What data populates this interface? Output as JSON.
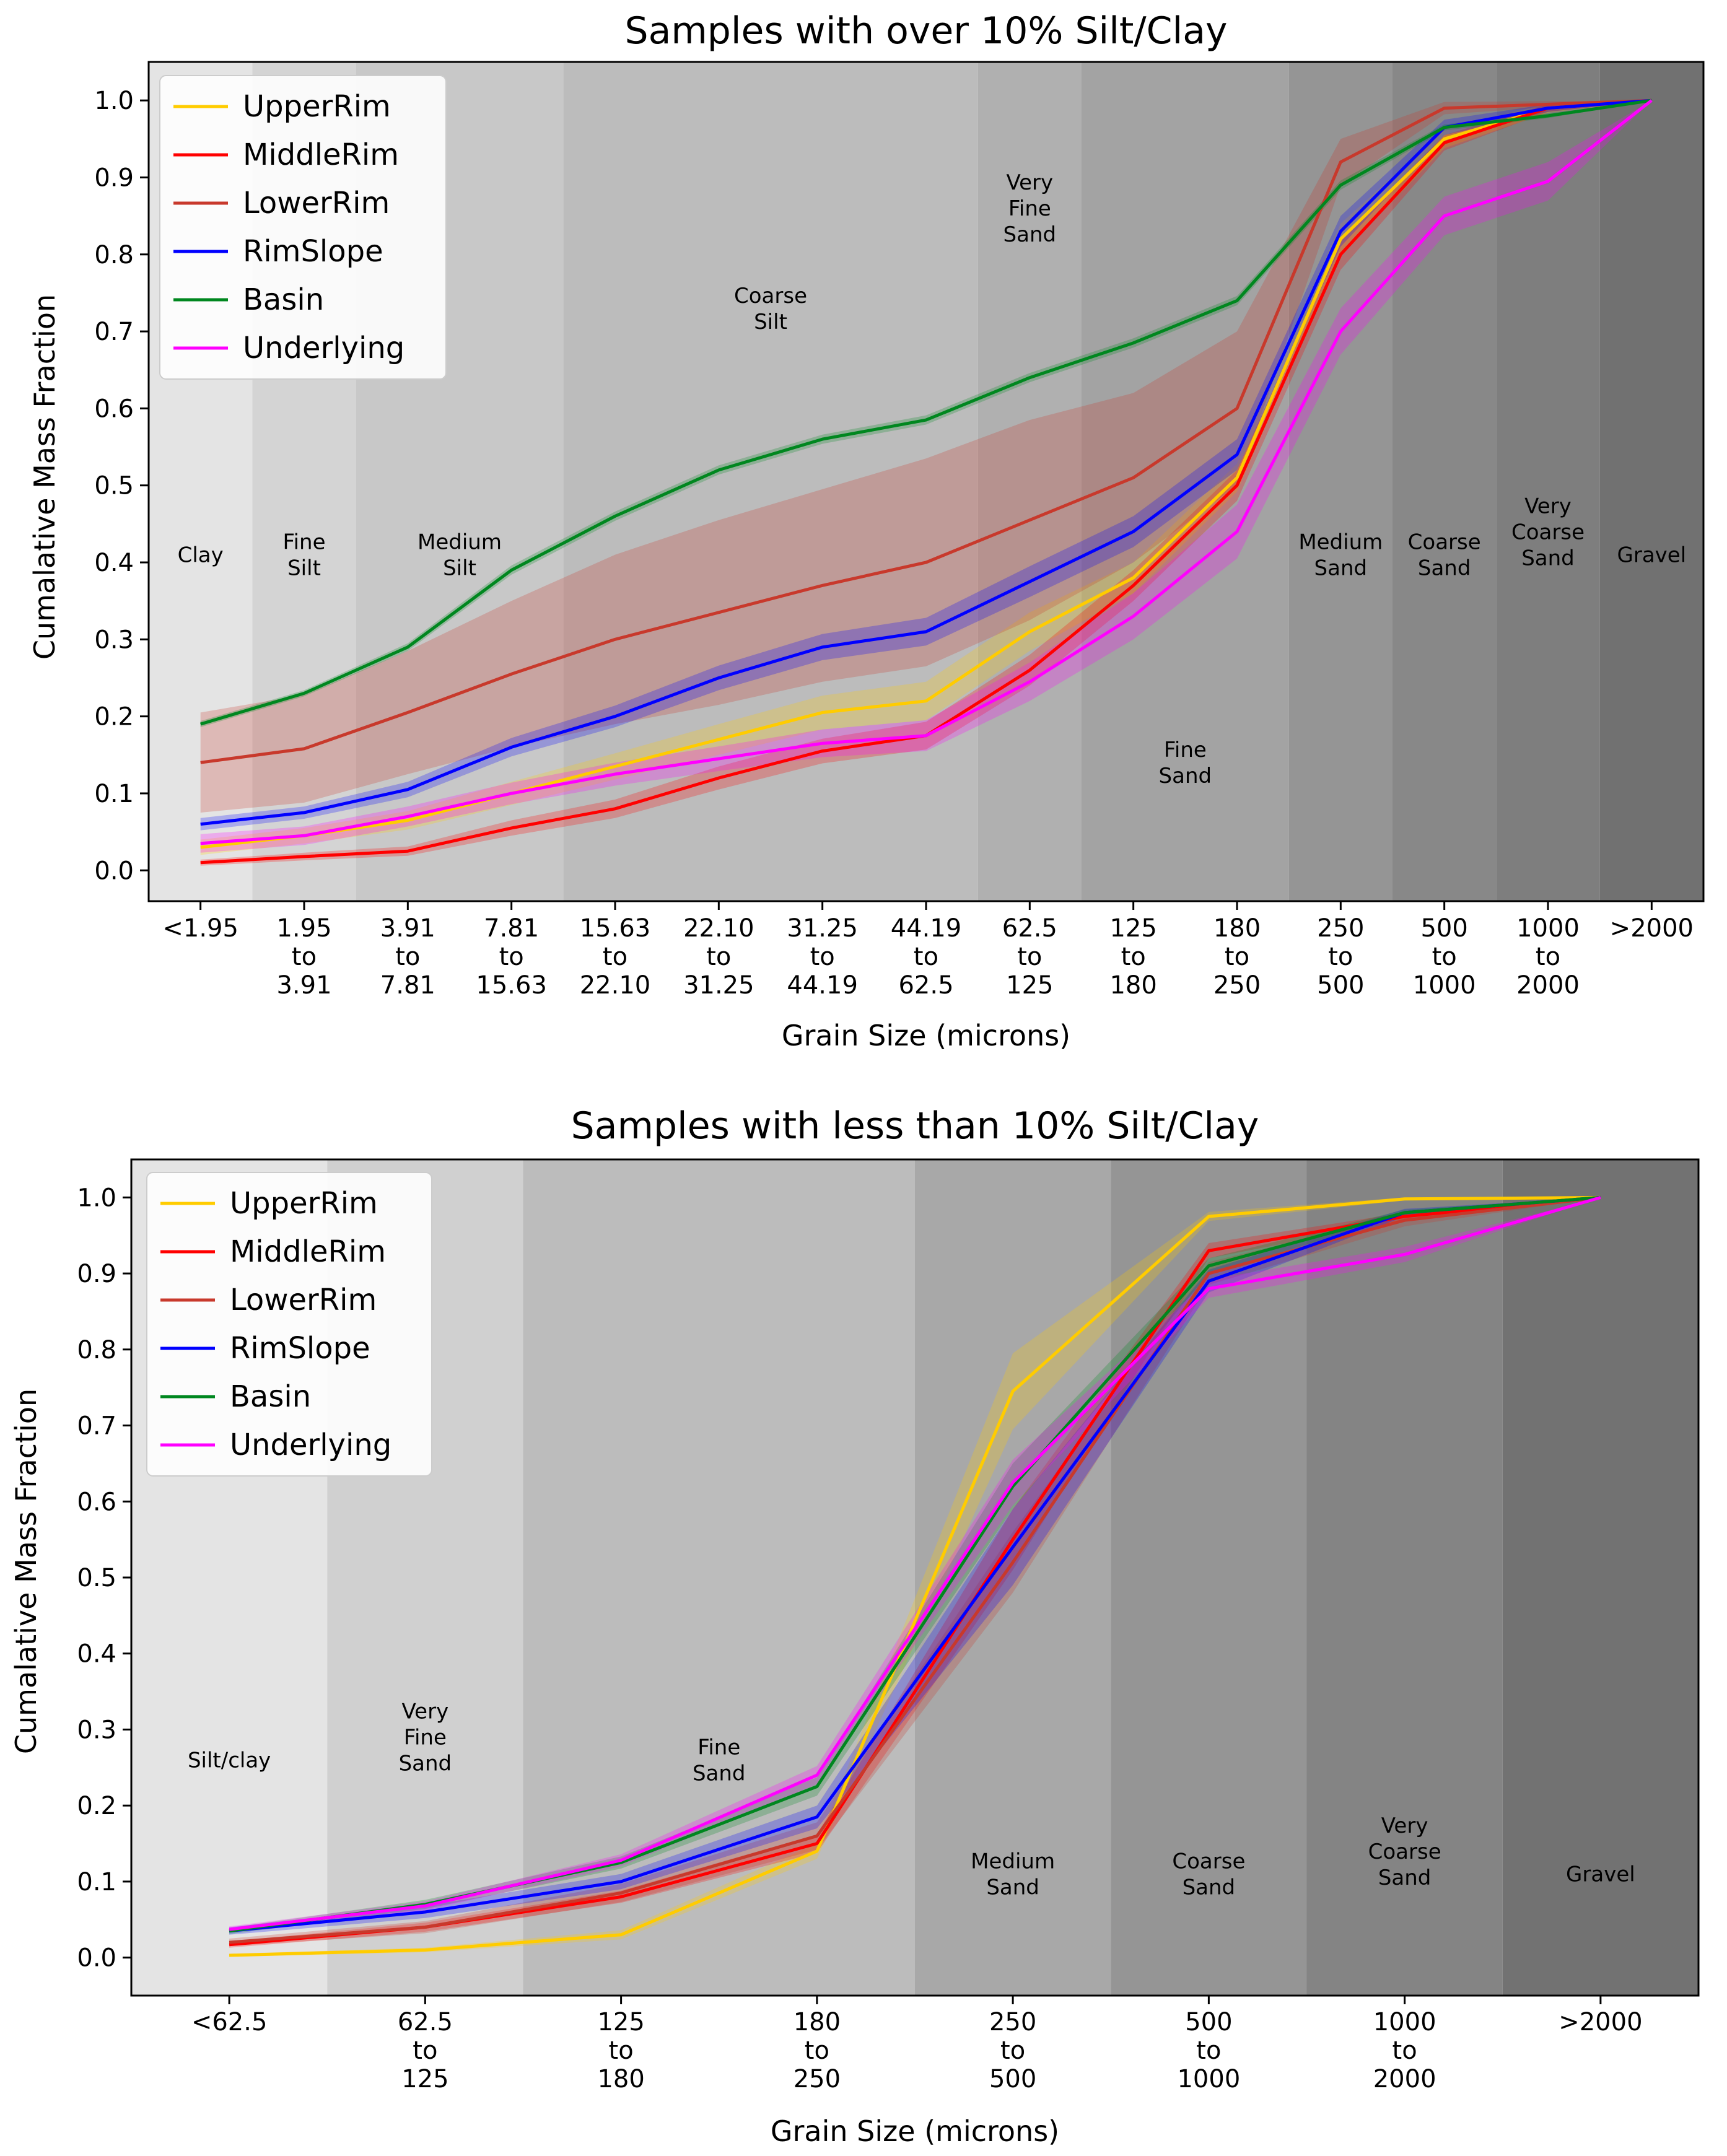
{
  "chart_data": [
    {
      "type": "line",
      "title": "Samples with over 10% Silt/Clay",
      "xlabel": "Grain Size (microns)",
      "ylabel": "Cumalative Mass Fraction",
      "ylim": [
        -0.04,
        1.05
      ],
      "yticks": [
        "0.0",
        "0.1",
        "0.2",
        "0.3",
        "0.4",
        "0.5",
        "0.6",
        "0.7",
        "0.8",
        "0.9",
        "1.0"
      ],
      "categories": [
        [
          "<1.95"
        ],
        [
          "1.95",
          "to",
          "3.91"
        ],
        [
          "3.91",
          "to",
          "7.81"
        ],
        [
          "7.81",
          "to",
          "15.63"
        ],
        [
          "15.63",
          "to",
          "22.10"
        ],
        [
          "22.10",
          "to",
          "31.25"
        ],
        [
          "31.25",
          "to",
          "44.19"
        ],
        [
          "44.19",
          "to",
          "62.5"
        ],
        [
          "62.5",
          "to",
          "125"
        ],
        [
          "125",
          "to",
          "180"
        ],
        [
          "180",
          "to",
          "250"
        ],
        [
          "250",
          "to",
          "500"
        ],
        [
          "500",
          "to",
          "1000"
        ],
        [
          "1000",
          "to",
          "2000"
        ],
        [
          ">2000"
        ]
      ],
      "regions": [
        {
          "lines": [
            "Clay"
          ],
          "from": -0.5,
          "to": 0.5,
          "shade": "#e4e4e4",
          "label_y": 0.41
        },
        {
          "lines": [
            "Fine",
            "Silt"
          ],
          "from": 0.5,
          "to": 1.5,
          "shade": "#d4d4d4",
          "label_y": 0.41
        },
        {
          "lines": [
            "Medium",
            "Silt"
          ],
          "from": 1.5,
          "to": 3.5,
          "shade": "#c8c8c8",
          "label_y": 0.41
        },
        {
          "lines": [
            "Coarse",
            "Silt"
          ],
          "from": 3.5,
          "to": 7.5,
          "shade": "#bcbcbc",
          "label_y": 0.73
        },
        {
          "lines": [
            "Very",
            "Fine",
            "Sand"
          ],
          "from": 7.5,
          "to": 8.5,
          "shade": "#b0b0b0",
          "label_y": 0.86
        },
        {
          "lines": [
            "Fine",
            "Sand"
          ],
          "from": 8.5,
          "to": 10.5,
          "shade": "#a3a3a3",
          "label_y": 0.14
        },
        {
          "lines": [
            "Medium",
            "Sand"
          ],
          "from": 10.5,
          "to": 11.5,
          "shade": "#959595",
          "label_y": 0.41
        },
        {
          "lines": [
            "Coarse",
            "Sand"
          ],
          "from": 11.5,
          "to": 12.5,
          "shade": "#888888",
          "label_y": 0.41
        },
        {
          "lines": [
            "Very",
            "Coarse",
            "Sand"
          ],
          "from": 12.5,
          "to": 13.5,
          "shade": "#7e7e7e",
          "label_y": 0.44
        },
        {
          "lines": [
            "Gravel"
          ],
          "from": 13.5,
          "to": 14.5,
          "shade": "#717171",
          "label_y": 0.41
        }
      ],
      "series": [
        {
          "name": "UpperRim",
          "color": "#ffcc00",
          "values": [
            0.03,
            0.045,
            0.065,
            0.1,
            0.135,
            0.17,
            0.205,
            0.22,
            0.31,
            0.38,
            0.51,
            0.82,
            0.95,
            0.99,
            1.0
          ],
          "band": [
            0.01,
            0.01,
            0.012,
            0.015,
            0.017,
            0.02,
            0.022,
            0.025,
            0.025,
            0.02,
            0.018,
            0.02,
            0.012,
            0.006,
            0.0
          ]
        },
        {
          "name": "MiddleRim",
          "color": "#ff0000",
          "values": [
            0.01,
            0.018,
            0.025,
            0.055,
            0.08,
            0.12,
            0.155,
            0.175,
            0.26,
            0.37,
            0.5,
            0.8,
            0.945,
            0.99,
            1.0
          ],
          "band": [
            0.004,
            0.005,
            0.006,
            0.01,
            0.012,
            0.015,
            0.016,
            0.018,
            0.02,
            0.02,
            0.02,
            0.02,
            0.01,
            0.005,
            0.0
          ]
        },
        {
          "name": "LowerRim",
          "color": "#c8392c",
          "values": [
            0.14,
            0.158,
            0.205,
            0.255,
            0.3,
            0.335,
            0.37,
            0.4,
            0.455,
            0.51,
            0.6,
            0.92,
            0.99,
            0.995,
            1.0
          ],
          "band": [
            0.065,
            0.07,
            0.08,
            0.095,
            0.11,
            0.12,
            0.125,
            0.135,
            0.13,
            0.11,
            0.1,
            0.03,
            0.008,
            0.004,
            0.0
          ]
        },
        {
          "name": "RimSlope",
          "color": "#0000ff",
          "values": [
            0.06,
            0.075,
            0.105,
            0.16,
            0.2,
            0.25,
            0.29,
            0.31,
            0.375,
            0.44,
            0.54,
            0.83,
            0.965,
            0.99,
            1.0
          ],
          "band": [
            0.008,
            0.008,
            0.01,
            0.012,
            0.014,
            0.016,
            0.017,
            0.018,
            0.02,
            0.02,
            0.02,
            0.02,
            0.01,
            0.005,
            0.0
          ]
        },
        {
          "name": "Basin",
          "color": "#00871f",
          "values": [
            0.19,
            0.23,
            0.29,
            0.39,
            0.46,
            0.52,
            0.56,
            0.585,
            0.64,
            0.685,
            0.74,
            0.89,
            0.965,
            0.98,
            1.0
          ],
          "band": [
            0.004,
            0.004,
            0.005,
            0.006,
            0.006,
            0.006,
            0.006,
            0.006,
            0.006,
            0.006,
            0.006,
            0.006,
            0.004,
            0.003,
            0.0
          ]
        },
        {
          "name": "Underlying",
          "color": "#ff00ff",
          "values": [
            0.035,
            0.045,
            0.07,
            0.1,
            0.125,
            0.145,
            0.165,
            0.175,
            0.245,
            0.33,
            0.44,
            0.7,
            0.85,
            0.895,
            1.0
          ],
          "band": [
            0.012,
            0.012,
            0.013,
            0.014,
            0.015,
            0.016,
            0.018,
            0.02,
            0.025,
            0.03,
            0.035,
            0.03,
            0.025,
            0.025,
            0.0
          ]
        }
      ]
    },
    {
      "type": "line",
      "title": "Samples with less than 10% Silt/Clay",
      "xlabel": "Grain Size (microns)",
      "ylabel": "Cumalative Mass Fraction",
      "ylim": [
        -0.05,
        1.05
      ],
      "yticks": [
        "0.0",
        "0.1",
        "0.2",
        "0.3",
        "0.4",
        "0.5",
        "0.6",
        "0.7",
        "0.8",
        "0.9",
        "1.0"
      ],
      "categories": [
        [
          "<62.5"
        ],
        [
          "62.5",
          "to",
          "125"
        ],
        [
          "125",
          "to",
          "180"
        ],
        [
          "180",
          "to",
          "250"
        ],
        [
          "250",
          "to",
          "500"
        ],
        [
          "500",
          "to",
          "1000"
        ],
        [
          "1000",
          "to",
          "2000"
        ],
        [
          ">2000"
        ]
      ],
      "regions": [
        {
          "lines": [
            "Silt/clay"
          ],
          "from": -0.5,
          "to": 0.5,
          "shade": "#e4e4e4",
          "label_y": 0.26
        },
        {
          "lines": [
            "Very",
            "Fine",
            "Sand"
          ],
          "from": 0.5,
          "to": 1.5,
          "shade": "#d0d0d0",
          "label_y": 0.29
        },
        {
          "lines": [
            "Fine",
            "Sand"
          ],
          "from": 1.5,
          "to": 3.5,
          "shade": "#bcbcbc",
          "label_y": 0.26
        },
        {
          "lines": [
            "Medium",
            "Sand"
          ],
          "from": 3.5,
          "to": 4.5,
          "shade": "#a8a8a8",
          "label_y": 0.11
        },
        {
          "lines": [
            "Coarse",
            "Sand"
          ],
          "from": 4.5,
          "to": 5.5,
          "shade": "#959595",
          "label_y": 0.11
        },
        {
          "lines": [
            "Very",
            "Coarse",
            "Sand"
          ],
          "from": 5.5,
          "to": 6.5,
          "shade": "#848484",
          "label_y": 0.14
        },
        {
          "lines": [
            "Gravel"
          ],
          "from": 6.5,
          "to": 7.5,
          "shade": "#727272",
          "label_y": 0.11
        }
      ],
      "series": [
        {
          "name": "UpperRim",
          "color": "#ffcc00",
          "values": [
            0.003,
            0.01,
            0.03,
            0.14,
            0.745,
            0.975,
            0.998,
            1.0
          ],
          "band": [
            0.002,
            0.003,
            0.006,
            0.01,
            0.05,
            0.006,
            0.002,
            0.0
          ]
        },
        {
          "name": "MiddleRim",
          "color": "#ff0000",
          "values": [
            0.017,
            0.04,
            0.08,
            0.15,
            0.55,
            0.93,
            0.975,
            1.0
          ],
          "band": [
            0.004,
            0.006,
            0.008,
            0.012,
            0.04,
            0.01,
            0.005,
            0.0
          ]
        },
        {
          "name": "LowerRim",
          "color": "#c8392c",
          "values": [
            0.02,
            0.04,
            0.085,
            0.16,
            0.52,
            0.9,
            0.97,
            1.0
          ],
          "band": [
            0.005,
            0.008,
            0.012,
            0.018,
            0.04,
            0.015,
            0.008,
            0.0
          ]
        },
        {
          "name": "RimSlope",
          "color": "#0000ff",
          "values": [
            0.035,
            0.06,
            0.1,
            0.185,
            0.54,
            0.89,
            0.98,
            1.0
          ],
          "band": [
            0.005,
            0.008,
            0.01,
            0.015,
            0.05,
            0.015,
            0.005,
            0.0
          ]
        },
        {
          "name": "Basin",
          "color": "#00871f",
          "values": [
            0.035,
            0.07,
            0.125,
            0.225,
            0.62,
            0.91,
            0.98,
            1.0
          ],
          "band": [
            0.004,
            0.006,
            0.008,
            0.012,
            0.03,
            0.01,
            0.004,
            0.0
          ]
        },
        {
          "name": "Underlying",
          "color": "#ff00ff",
          "values": [
            0.037,
            0.068,
            0.128,
            0.24,
            0.625,
            0.88,
            0.925,
            1.0
          ],
          "band": [
            0.004,
            0.006,
            0.008,
            0.012,
            0.03,
            0.012,
            0.01,
            0.0
          ]
        }
      ]
    }
  ]
}
